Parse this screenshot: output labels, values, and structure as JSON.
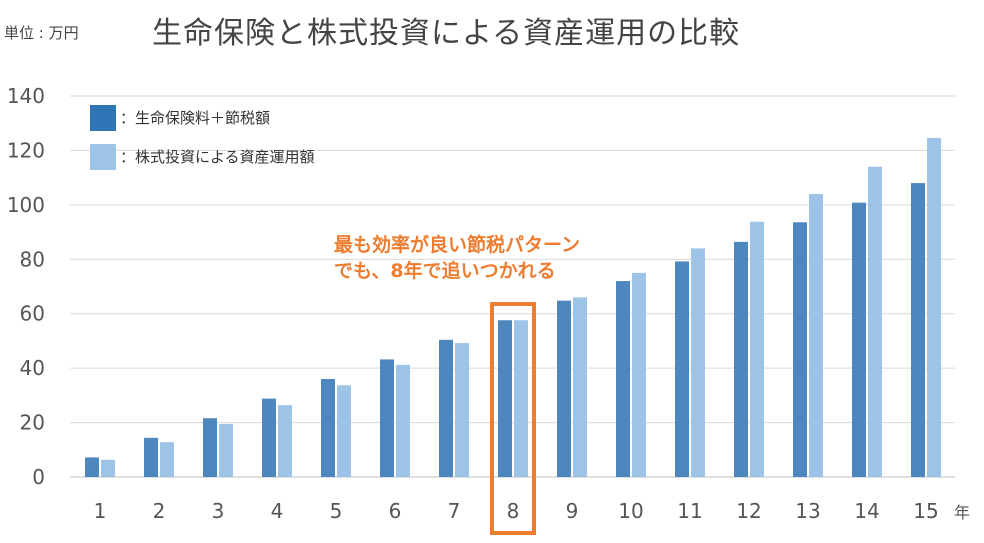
{
  "header": {
    "unit_label": "単位 : 万円",
    "title": "生命保険と株式投資による資産運用の比較"
  },
  "chart_data": {
    "type": "bar",
    "title": "生命保険と株式投資による資産運用の比較",
    "unit": "単位 : 万円",
    "x_unit": "年",
    "categories": [
      "1",
      "2",
      "3",
      "4",
      "5",
      "6",
      "7",
      "8",
      "9",
      "10",
      "11",
      "12",
      "13",
      "14",
      "15"
    ],
    "series": [
      {
        "name": "：生命保険料＋節税額",
        "color": "#4E86BE",
        "legend_color": "#2E75B6",
        "values": [
          7.2,
          14.4,
          21.6,
          28.8,
          36.0,
          43.2,
          50.4,
          57.6,
          64.8,
          72.0,
          79.2,
          86.4,
          93.6,
          100.8,
          108.0
        ]
      },
      {
        "name": "：株式投資による資産運用額",
        "color": "#9DC3E6",
        "legend_color": "#9DC3E6",
        "values": [
          6.3,
          12.8,
          19.5,
          26.4,
          33.7,
          41.2,
          49.2,
          57.6,
          66.0,
          75.0,
          84.0,
          93.8,
          104.0,
          114.0,
          124.6
        ]
      }
    ],
    "ylim": [
      0,
      140
    ],
    "yticks": [
      0,
      20,
      40,
      60,
      80,
      100,
      120,
      140
    ],
    "grid": true,
    "legend_placement": "top-left",
    "highlight_category": "8",
    "highlight_color": "#ED7D31",
    "annotation": [
      "最も効率が良い節税パターン",
      "でも、8年で追いつかれる"
    ]
  }
}
